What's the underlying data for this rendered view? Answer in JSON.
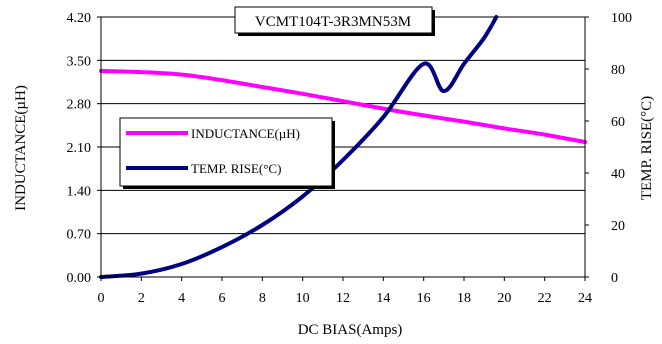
{
  "chart_data": {
    "type": "line",
    "title": "VCMT104T-3R3MN53M",
    "xlabel": "DC BIAS(Amps)",
    "ylabel_left": "INDUCTANCE(µH)",
    "ylabel_right": "TEMP. RISE(°C)",
    "xlim": [
      0,
      24
    ],
    "ylim_left": [
      0,
      4.2
    ],
    "ylim_right": [
      0,
      100
    ],
    "x_ticks": [
      "0",
      "2",
      "4",
      "6",
      "8",
      "10",
      "12",
      "14",
      "16",
      "18",
      "20",
      "22",
      "24"
    ],
    "y_left_ticks": [
      "0.00",
      "0.70",
      "1.40",
      "2.10",
      "2.80",
      "3.50",
      "4.20"
    ],
    "y_right_ticks": [
      "0",
      "20",
      "40",
      "60",
      "80",
      "100"
    ],
    "grid": "horizontal",
    "legend_position": "center-left",
    "series": [
      {
        "name": "INDUCTANCE(µH)",
        "axis": "left",
        "color": "#ff00ff",
        "x": [
          0,
          2,
          4,
          6,
          8,
          10,
          12,
          14,
          16,
          18,
          20,
          22,
          24
        ],
        "values": [
          3.33,
          3.31,
          3.27,
          3.18,
          3.07,
          2.96,
          2.84,
          2.72,
          2.61,
          2.51,
          2.4,
          2.3,
          2.18
        ]
      },
      {
        "name": "TEMP. RISE(°C)",
        "axis": "right",
        "color": "#000080",
        "x": [
          0,
          2,
          4,
          6,
          8,
          10,
          12,
          14,
          16,
          17,
          18,
          19,
          19.6
        ],
        "values": [
          0,
          1.3,
          5,
          11.5,
          20,
          31,
          45,
          61.5,
          82,
          71.5,
          82,
          92,
          100
        ]
      }
    ]
  }
}
